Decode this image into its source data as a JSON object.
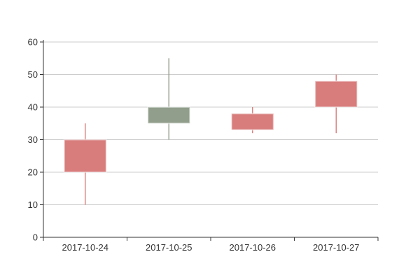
{
  "chart_data": {
    "type": "candlestick",
    "title": "",
    "categories": [
      "2017-10-24",
      "2017-10-25",
      "2017-10-26",
      "2017-10-27"
    ],
    "candles": [
      {
        "date": "2017-10-24",
        "open": 20,
        "close": 30,
        "low": 10,
        "high": 35,
        "direction": "up"
      },
      {
        "date": "2017-10-25",
        "open": 40,
        "close": 35,
        "low": 30,
        "high": 55,
        "direction": "down"
      },
      {
        "date": "2017-10-26",
        "open": 33,
        "close": 38,
        "low": 32,
        "high": 40,
        "direction": "up"
      },
      {
        "date": "2017-10-27",
        "open": 40,
        "close": 48,
        "low": 32,
        "high": 50,
        "direction": "up"
      }
    ],
    "y_axis": {
      "min": 0,
      "max": 60,
      "tick_interval": 10,
      "tick_labels": [
        "0",
        "10",
        "20",
        "30",
        "40",
        "50",
        "60"
      ]
    },
    "x_axis": {
      "tick_labels": [
        "2017-10-24",
        "2017-10-25",
        "2017-10-26",
        "2017-10-27"
      ]
    },
    "legend": "none",
    "grid": "horizontal gridlines on",
    "colors": {
      "bullish_body": "#d87c7c",
      "bearish_body": "#919e8b",
      "gridline": "#cccccc",
      "axis_line": "#333333",
      "tick": "#333333",
      "label_text": "#333333",
      "background": "#ffffff"
    }
  }
}
